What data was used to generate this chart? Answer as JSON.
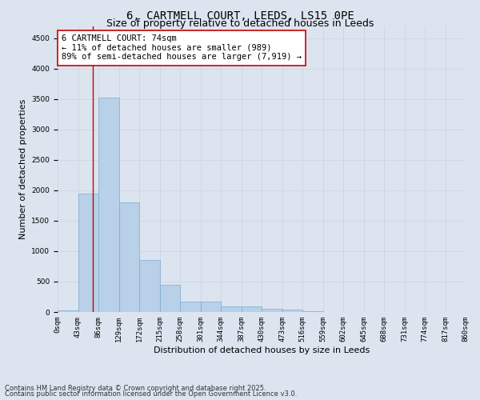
{
  "title_line1": "6, CARTMELL COURT, LEEDS, LS15 0PE",
  "title_line2": "Size of property relative to detached houses in Leeds",
  "xlabel": "Distribution of detached houses by size in Leeds",
  "ylabel": "Number of detached properties",
  "bar_values": [
    30,
    1950,
    3520,
    1800,
    860,
    450,
    170,
    170,
    90,
    90,
    50,
    40,
    10,
    0,
    0,
    0,
    0,
    0,
    0,
    0
  ],
  "bar_labels": [
    "0sqm",
    "43sqm",
    "86sqm",
    "129sqm",
    "172sqm",
    "215sqm",
    "258sqm",
    "301sqm",
    "344sqm",
    "387sqm",
    "430sqm",
    "473sqm",
    "516sqm",
    "559sqm",
    "602sqm",
    "645sqm",
    "688sqm",
    "731sqm",
    "774sqm",
    "817sqm",
    "860sqm"
  ],
  "bar_color": "#b8d0e8",
  "bar_edge_color": "#7aadd0",
  "grid_color": "#cdd5e0",
  "background_color": "#dce4ef",
  "vline_x": 1.72,
  "vline_color": "#cc0000",
  "annotation_text": "6 CARTMELL COURT: 74sqm\n← 11% of detached houses are smaller (989)\n89% of semi-detached houses are larger (7,919) →",
  "annotation_box_color": "#ffffff",
  "annotation_box_edge": "#cc0000",
  "ylim": [
    0,
    4700
  ],
  "yticks": [
    0,
    500,
    1000,
    1500,
    2000,
    2500,
    3000,
    3500,
    4000,
    4500
  ],
  "footnote1": "Contains HM Land Registry data © Crown copyright and database right 2025.",
  "footnote2": "Contains public sector information licensed under the Open Government Licence v3.0.",
  "title_fontsize": 10,
  "subtitle_fontsize": 9,
  "axis_label_fontsize": 8,
  "tick_fontsize": 6.5,
  "annotation_fontsize": 7.5
}
